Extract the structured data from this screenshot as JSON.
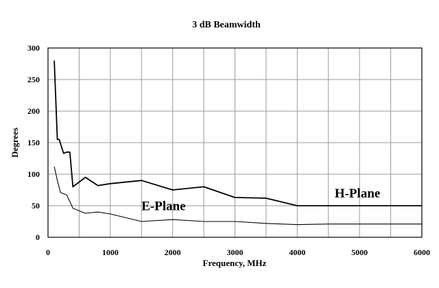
{
  "chart_data": {
    "type": "line",
    "title": "3 dB Beamwidth",
    "xlabel": "Frequency, MHz",
    "ylabel": "Degrees",
    "xlim": [
      0,
      6000
    ],
    "ylim": [
      0,
      300
    ],
    "xticks": [
      0,
      1000,
      2000,
      3000,
      4000,
      5000,
      6000
    ],
    "yticks": [
      0,
      50,
      100,
      150,
      200,
      250,
      300
    ],
    "xgrid_step": 500,
    "ygrid_step": 50,
    "grid": true,
    "series": [
      {
        "name": "H-Plane",
        "x": [
          100,
          150,
          180,
          250,
          300,
          350,
          400,
          600,
          800,
          1000,
          1500,
          2000,
          2500,
          3000,
          3500,
          4000,
          4500,
          5000,
          6000
        ],
        "y": [
          280,
          155,
          155,
          133,
          135,
          135,
          80,
          95,
          82,
          85,
          90,
          75,
          80,
          63,
          62,
          50,
          50,
          50,
          50
        ]
      },
      {
        "name": "E-Plane",
        "x": [
          100,
          150,
          200,
          300,
          400,
          600,
          800,
          1000,
          1500,
          2000,
          2500,
          3000,
          3500,
          4000,
          4500,
          5000,
          6000
        ],
        "y": [
          112,
          90,
          71,
          67,
          46,
          38,
          40,
          37,
          25,
          28,
          25,
          25,
          22,
          20,
          21,
          21,
          21
        ]
      }
    ],
    "annotations": [
      {
        "text": "E-Plane",
        "series": "E-Plane",
        "x": 1500,
        "y": 43
      },
      {
        "text": "H-Plane",
        "series": "H-Plane",
        "x": 4600,
        "y": 63
      }
    ]
  }
}
